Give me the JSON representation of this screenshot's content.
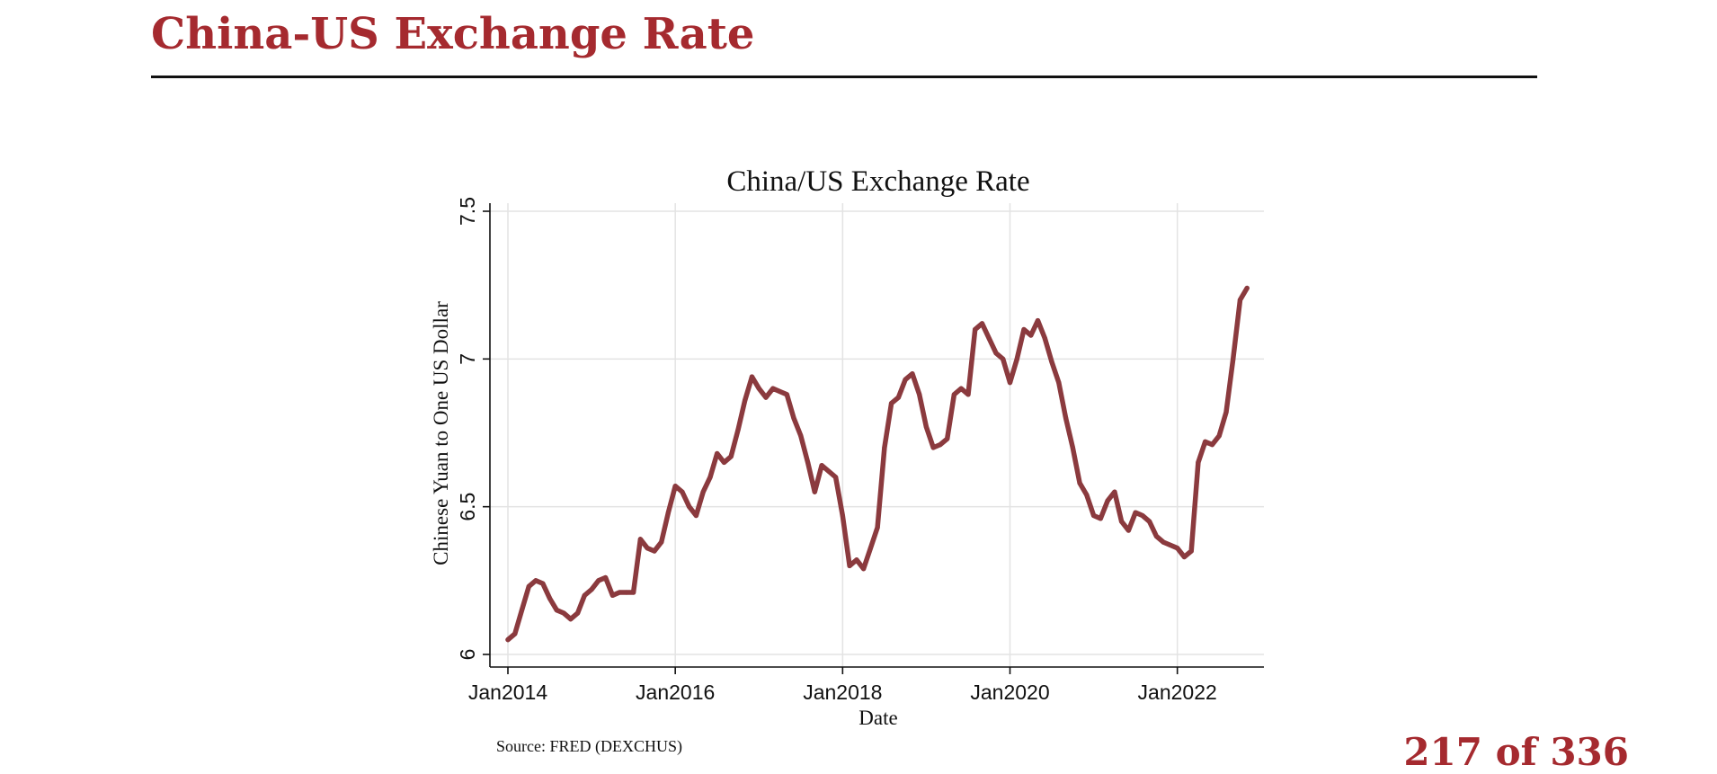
{
  "slide": {
    "title": "China-US Exchange Rate",
    "page_counter": "217 of 336",
    "title_color": "#a52a2f"
  },
  "chart_data": {
    "type": "line",
    "title": "China/US Exchange Rate",
    "xlabel": "Date",
    "ylabel": "Chinese Yuan to One US Dollar",
    "source_note": "Source: FRED (DEXCHUS)",
    "ylim": [
      6,
      7.5
    ],
    "xlim": [
      "2014-01-01",
      "2022-12-01"
    ],
    "y_ticks": [
      {
        "value": 6,
        "label": "6"
      },
      {
        "value": 6.5,
        "label": "6.5"
      },
      {
        "value": 7,
        "label": "7"
      },
      {
        "value": 7.5,
        "label": "7.5"
      }
    ],
    "x_ticks": [
      {
        "value": "2014-01",
        "label": "Jan2014"
      },
      {
        "value": "2016-01",
        "label": "Jan2016"
      },
      {
        "value": "2018-01",
        "label": "Jan2018"
      },
      {
        "value": "2020-01",
        "label": "Jan2020"
      },
      {
        "value": "2022-01",
        "label": "Jan2022"
      }
    ],
    "grid": true,
    "line_color": "#8b3a3e",
    "series": [
      {
        "x": [
          "2014-01",
          "2014-02",
          "2014-03",
          "2014-04",
          "2014-05",
          "2014-06",
          "2014-07",
          "2014-08",
          "2014-09",
          "2014-10",
          "2014-11",
          "2014-12",
          "2015-01",
          "2015-02",
          "2015-03",
          "2015-04",
          "2015-05",
          "2015-06",
          "2015-07",
          "2015-08",
          "2015-09",
          "2015-10",
          "2015-11",
          "2015-12",
          "2016-01",
          "2016-02",
          "2016-03",
          "2016-04",
          "2016-05",
          "2016-06",
          "2016-07",
          "2016-08",
          "2016-09",
          "2016-10",
          "2016-11",
          "2016-12",
          "2017-01",
          "2017-02",
          "2017-03",
          "2017-04",
          "2017-05",
          "2017-06",
          "2017-07",
          "2017-08",
          "2017-09",
          "2017-10",
          "2017-11",
          "2017-12",
          "2018-01",
          "2018-02",
          "2018-03",
          "2018-04",
          "2018-05",
          "2018-06",
          "2018-07",
          "2018-08",
          "2018-09",
          "2018-10",
          "2018-11",
          "2018-12",
          "2019-01",
          "2019-02",
          "2019-03",
          "2019-04",
          "2019-05",
          "2019-06",
          "2019-07",
          "2019-08",
          "2019-09",
          "2019-10",
          "2019-11",
          "2019-12",
          "2020-01",
          "2020-02",
          "2020-03",
          "2020-04",
          "2020-05",
          "2020-06",
          "2020-07",
          "2020-08",
          "2020-09",
          "2020-10",
          "2020-11",
          "2020-12",
          "2021-01",
          "2021-02",
          "2021-03",
          "2021-04",
          "2021-05",
          "2021-06",
          "2021-07",
          "2021-08",
          "2021-09",
          "2021-10",
          "2021-11",
          "2021-12",
          "2022-01",
          "2022-02",
          "2022-03",
          "2022-04",
          "2022-05",
          "2022-06",
          "2022-07",
          "2022-08",
          "2022-09",
          "2022-10",
          "2022-11"
        ],
        "values": [
          6.05,
          6.07,
          6.15,
          6.23,
          6.25,
          6.24,
          6.19,
          6.15,
          6.14,
          6.12,
          6.14,
          6.2,
          6.22,
          6.25,
          6.26,
          6.2,
          6.21,
          6.21,
          6.21,
          6.39,
          6.36,
          6.35,
          6.38,
          6.48,
          6.57,
          6.55,
          6.5,
          6.47,
          6.55,
          6.6,
          6.68,
          6.65,
          6.67,
          6.76,
          6.86,
          6.94,
          6.9,
          6.87,
          6.9,
          6.89,
          6.88,
          6.8,
          6.74,
          6.65,
          6.55,
          6.64,
          6.62,
          6.6,
          6.47,
          6.3,
          6.32,
          6.29,
          6.36,
          6.43,
          6.7,
          6.85,
          6.87,
          6.93,
          6.95,
          6.88,
          6.77,
          6.7,
          6.71,
          6.73,
          6.88,
          6.9,
          6.88,
          7.1,
          7.12,
          7.07,
          7.02,
          7.0,
          6.92,
          7.0,
          7.1,
          7.08,
          7.13,
          7.07,
          6.99,
          6.92,
          6.8,
          6.7,
          6.58,
          6.54,
          6.47,
          6.46,
          6.52,
          6.55,
          6.45,
          6.42,
          6.48,
          6.47,
          6.45,
          6.4,
          6.38,
          6.37,
          6.36,
          6.33,
          6.35,
          6.65,
          6.72,
          6.71,
          6.74,
          6.82,
          7.0,
          7.2,
          7.24
        ]
      }
    ]
  }
}
